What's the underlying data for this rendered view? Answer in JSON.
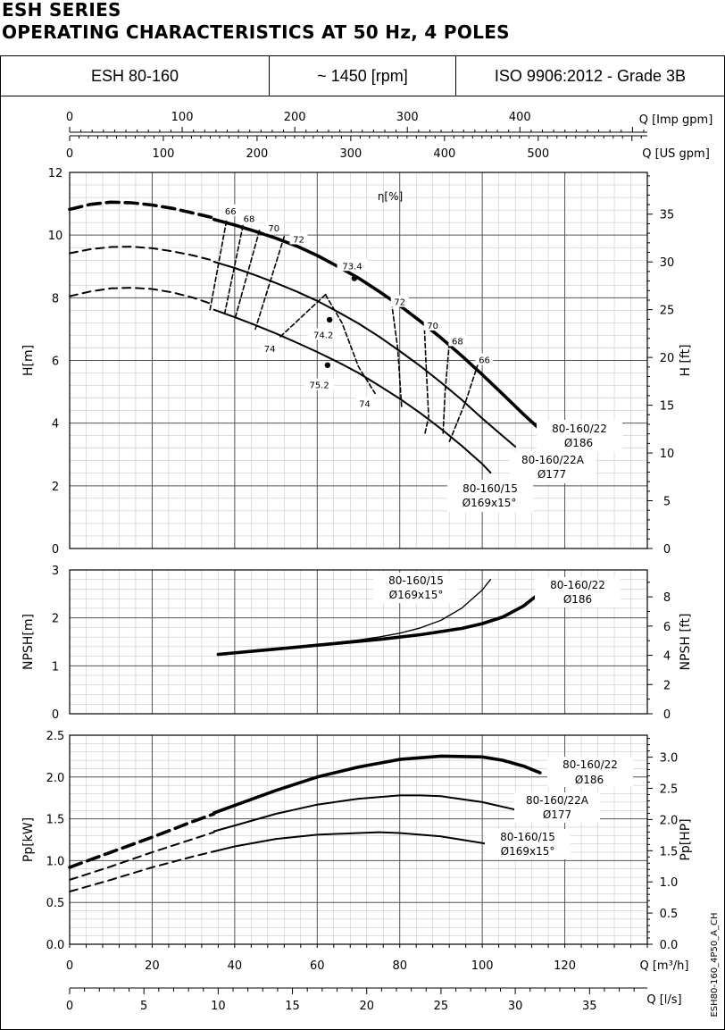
{
  "header": {
    "series": "ESH SERIES",
    "subtitle": "OPERATING CHARACTERISTICS AT 50 Hz, 4 POLES",
    "model": "ESH 80-160",
    "speed": "~ 1450 [rpm]",
    "standard": "ISO 9906:2012 - Grade 3B"
  },
  "footer_code": "ESH80-160_4P50_A_CH",
  "axes": {
    "imp_gpm": {
      "label": "Q [Imp gpm]",
      "ticks": [
        0,
        100,
        200,
        300,
        400
      ]
    },
    "us_gpm": {
      "label": "Q [US gpm]",
      "ticks": [
        0,
        100,
        200,
        300,
        400,
        500
      ]
    },
    "m3h": {
      "label": "Q [m³/h]",
      "ticks": [
        0,
        20,
        40,
        60,
        80,
        100,
        120
      ]
    },
    "ls": {
      "label": "Q [l/s]",
      "ticks": [
        0,
        5,
        10,
        15,
        20,
        25,
        30,
        35
      ]
    }
  },
  "chart_data": [
    {
      "type": "line",
      "panel": "head",
      "xlabel": "Q [m³/h]",
      "ylabel": "H[m]",
      "ylabel_right": "H [ft]",
      "xlim": [
        0,
        140
      ],
      "ylim": [
        0,
        12
      ],
      "yticks": [
        0,
        2,
        4,
        6,
        8,
        10,
        12
      ],
      "yticks_right": [
        0,
        5,
        10,
        15,
        20,
        25,
        30,
        35
      ],
      "efficiency_label": "η[%]",
      "series": [
        {
          "name": "80-160/22",
          "sub": "Ø186",
          "weight": "bold",
          "dashed": {
            "x": [
              0,
              5,
              10,
              15,
              20,
              25,
              30,
              35
            ],
            "y": [
              10.82,
              10.98,
              11.05,
              11.03,
              10.96,
              10.85,
              10.7,
              10.55
            ]
          },
          "solid": {
            "x": [
              35,
              40,
              45,
              50,
              55,
              60,
              65,
              70,
              75,
              80,
              85,
              90,
              95,
              100,
              105,
              110,
              114
            ],
            "y": [
              10.5,
              10.32,
              10.12,
              9.9,
              9.65,
              9.35,
              9.0,
              8.63,
              8.2,
              7.75,
              7.25,
              6.72,
              6.15,
              5.55,
              4.92,
              4.28,
              3.8
            ]
          }
        },
        {
          "name": "80-160/22A",
          "sub": "Ø177",
          "weight": "medium",
          "dashed": {
            "x": [
              0,
              5,
              10,
              15,
              20,
              25,
              30,
              35
            ],
            "y": [
              9.42,
              9.55,
              9.62,
              9.63,
              9.58,
              9.48,
              9.35,
              9.18
            ]
          },
          "solid": {
            "x": [
              35,
              40,
              45,
              50,
              55,
              60,
              65,
              70,
              75,
              80,
              85,
              90,
              95,
              100,
              104,
              108
            ],
            "y": [
              9.15,
              8.95,
              8.72,
              8.47,
              8.2,
              7.9,
              7.55,
              7.18,
              6.76,
              6.3,
              5.82,
              5.3,
              4.75,
              4.15,
              3.7,
              3.25
            ]
          }
        },
        {
          "name": "80-160/15",
          "sub": "Ø169x15°",
          "weight": "medium",
          "dashed": {
            "x": [
              0,
              5,
              10,
              15,
              20,
              25,
              30,
              35
            ],
            "y": [
              8.05,
              8.2,
              8.3,
              8.32,
              8.28,
              8.17,
              8.0,
              7.78
            ]
          },
          "solid": {
            "x": [
              35,
              40,
              45,
              50,
              55,
              60,
              65,
              70,
              75,
              80,
              85,
              90,
              95,
              100,
              102
            ],
            "y": [
              7.62,
              7.38,
              7.13,
              6.86,
              6.57,
              6.27,
              5.95,
              5.6,
              5.2,
              4.78,
              4.32,
              3.82,
              3.28,
              2.7,
              2.42
            ]
          }
        }
      ],
      "efficiency_labels": [
        {
          "text": "66",
          "x": 39,
          "y": 10.75
        },
        {
          "text": "68",
          "x": 43.5,
          "y": 10.5
        },
        {
          "text": "70",
          "x": 49.5,
          "y": 10.2
        },
        {
          "text": "72",
          "x": 55.5,
          "y": 9.85
        },
        {
          "text": "73.4",
          "x": 68.5,
          "y": 9.0
        },
        {
          "text": "72",
          "x": 80,
          "y": 7.85
        },
        {
          "text": "70",
          "x": 88,
          "y": 7.1
        },
        {
          "text": "68",
          "x": 94,
          "y": 6.6
        },
        {
          "text": "66",
          "x": 100.5,
          "y": 6.0
        },
        {
          "text": "74",
          "x": 48.5,
          "y": 6.35
        },
        {
          "text": "74.2",
          "x": 61.5,
          "y": 6.8
        },
        {
          "text": "75.2",
          "x": 60.5,
          "y": 5.2
        },
        {
          "text": "74",
          "x": 71.5,
          "y": 4.6
        }
      ],
      "annotations": [
        {
          "text": "80-160/22",
          "sub": "Ø186"
        },
        {
          "text": "80-160/22A",
          "sub": "Ø177"
        },
        {
          "text": "80-160/15",
          "sub": "Ø169x15°"
        }
      ]
    },
    {
      "type": "line",
      "panel": "npsh",
      "ylabel": "NPSH[m]",
      "ylabel_right": "NPSH [ft]",
      "xlim": [
        0,
        140
      ],
      "ylim": [
        0,
        3
      ],
      "yticks": [
        0,
        1,
        2,
        3
      ],
      "yticks_right": [
        0,
        2,
        4,
        6,
        8
      ],
      "series": [
        {
          "name": "80-160/22",
          "sub": "Ø186",
          "weight": "bold",
          "x": [
            36,
            45,
            55,
            65,
            75,
            85,
            95,
            100,
            105,
            110,
            114
          ],
          "y": [
            1.24,
            1.31,
            1.39,
            1.47,
            1.55,
            1.65,
            1.78,
            1.88,
            2.02,
            2.25,
            2.52
          ]
        },
        {
          "name": "80-160/15",
          "sub": "Ø169x15°",
          "weight": "thin",
          "x": [
            60,
            65,
            70,
            75,
            80,
            85,
            90,
            95,
            100,
            102
          ],
          "y": [
            1.44,
            1.49,
            1.54,
            1.6,
            1.68,
            1.79,
            1.95,
            2.2,
            2.58,
            2.8
          ]
        }
      ],
      "annotations": [
        {
          "text": "80-160/15",
          "sub": "Ø169x15°"
        },
        {
          "text": "80-160/22",
          "sub": "Ø186"
        }
      ]
    },
    {
      "type": "line",
      "panel": "power",
      "ylabel": "Pp[kW]",
      "ylabel_right": "Pp[HP]",
      "xlim": [
        0,
        140
      ],
      "ylim": [
        0,
        2.5
      ],
      "yticks": [
        0.0,
        0.5,
        1.0,
        1.5,
        2.0,
        2.5
      ],
      "yticks_right": [
        0,
        0.5,
        1.0,
        1.5,
        2.0,
        2.5,
        3.0
      ],
      "series": [
        {
          "name": "80-160/22",
          "sub": "Ø186",
          "weight": "bold",
          "dashed": {
            "x": [
              0,
              10,
              20,
              30,
              35
            ],
            "y": [
              0.92,
              1.1,
              1.28,
              1.47,
              1.56
            ]
          },
          "solid": {
            "x": [
              35,
              40,
              50,
              60,
              70,
              80,
              90,
              100,
              105,
              110,
              114
            ],
            "y": [
              1.57,
              1.66,
              1.84,
              2.0,
              2.12,
              2.21,
              2.25,
              2.24,
              2.2,
              2.13,
              2.05
            ]
          }
        },
        {
          "name": "80-160/22A",
          "sub": "Ø177",
          "weight": "medium",
          "dashed": {
            "x": [
              0,
              10,
              20,
              30,
              35
            ],
            "y": [
              0.77,
              0.93,
              1.1,
              1.26,
              1.34
            ]
          },
          "solid": {
            "x": [
              35,
              40,
              50,
              60,
              70,
              80,
              85,
              90,
              100,
              108
            ],
            "y": [
              1.35,
              1.42,
              1.56,
              1.67,
              1.74,
              1.78,
              1.78,
              1.77,
              1.7,
              1.61
            ]
          }
        },
        {
          "name": "80-160/15",
          "sub": "Ø169x15°",
          "weight": "medium",
          "dashed": {
            "x": [
              0,
              10,
              20,
              30,
              35
            ],
            "y": [
              0.63,
              0.77,
              0.92,
              1.05,
              1.11
            ]
          },
          "solid": {
            "x": [
              35,
              40,
              50,
              60,
              70,
              75,
              80,
              90,
              100,
              102
            ],
            "y": [
              1.11,
              1.17,
              1.26,
              1.31,
              1.33,
              1.34,
              1.33,
              1.29,
              1.21,
              1.19
            ]
          }
        }
      ],
      "annotations": [
        {
          "text": "80-160/22",
          "sub": "Ø186"
        },
        {
          "text": "80-160/22A",
          "sub": "Ø177"
        },
        {
          "text": "80-160/15",
          "sub": "Ø169x15°"
        }
      ]
    }
  ]
}
